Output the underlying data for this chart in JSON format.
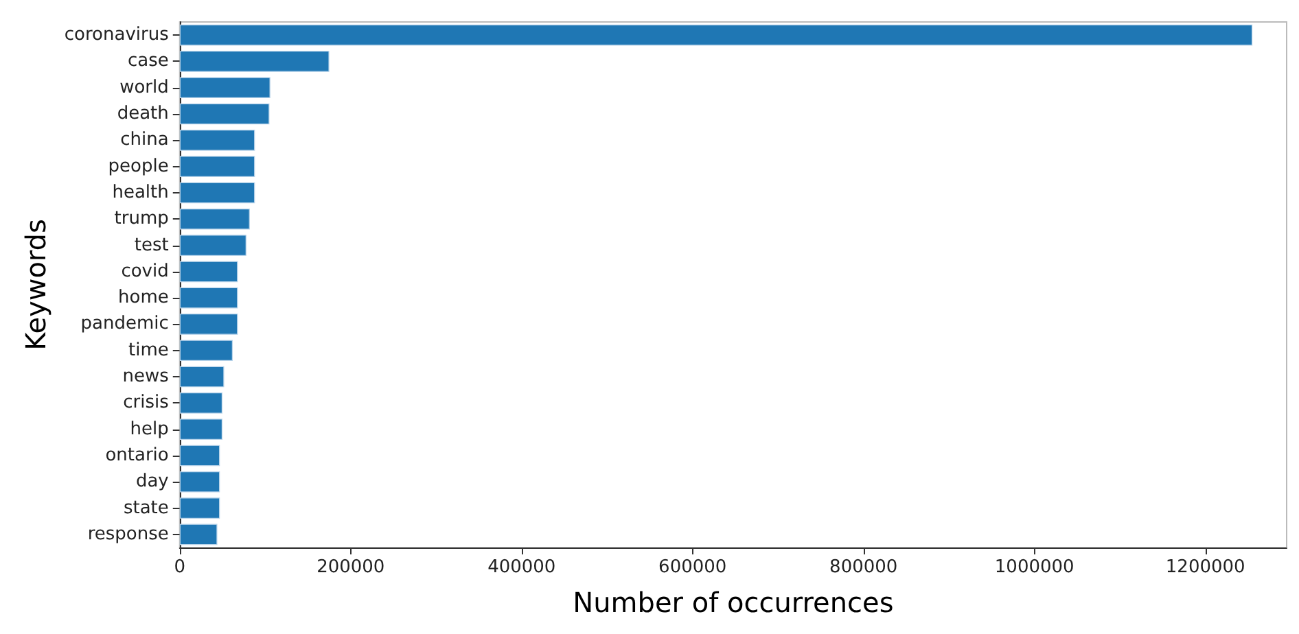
{
  "chart_data": {
    "type": "bar",
    "orientation": "horizontal",
    "xlabel": "Number of occurrences",
    "ylabel": "Keywords",
    "categories": [
      "coronavirus",
      "case",
      "world",
      "death",
      "china",
      "people",
      "health",
      "trump",
      "test",
      "covid",
      "home",
      "pandemic",
      "time",
      "news",
      "crisis",
      "help",
      "ontario",
      "day",
      "state",
      "response"
    ],
    "values": [
      1255000,
      175000,
      106000,
      105000,
      88000,
      88000,
      88000,
      82000,
      78000,
      68000,
      68000,
      68000,
      62000,
      52000,
      50000,
      50000,
      47000,
      47000,
      47000,
      44000
    ],
    "color": "#1f77b4",
    "xlim": [
      0,
      1295000
    ],
    "xticks": [
      0,
      200000,
      400000,
      600000,
      800000,
      1000000,
      1200000
    ],
    "grid": false
  }
}
